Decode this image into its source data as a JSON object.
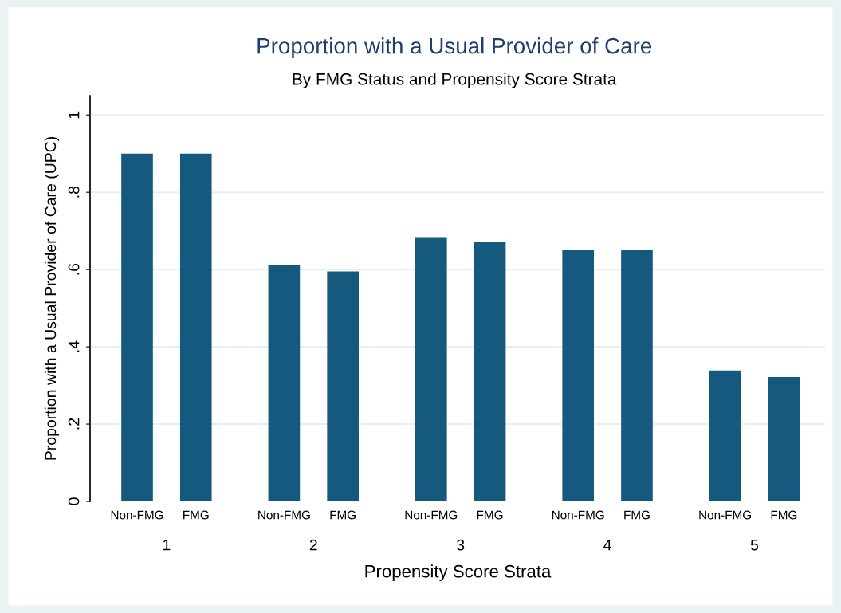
{
  "chart_data": {
    "type": "bar",
    "title": "Proportion with a Usual Provider of Care",
    "subtitle": "By FMG Status and Propensity Score Strata",
    "xlabel": "Propensity Score Strata",
    "ylabel": "Proportion with a Usual Provider of Care (UPC)",
    "categories": [
      "1",
      "2",
      "3",
      "4",
      "5"
    ],
    "series": [
      {
        "name": "Non-FMG",
        "color": "#155a7e",
        "values": [
          0.9,
          0.611,
          0.684,
          0.651,
          0.339
        ]
      },
      {
        "name": "FMG",
        "color": "#155a7e",
        "values": [
          0.9,
          0.595,
          0.672,
          0.651,
          0.322
        ]
      }
    ],
    "ylim": [
      0,
      1.05
    ],
    "yticks": [
      0,
      {
        "value": 0.2,
        "label": ".2"
      },
      {
        "value": 0.4,
        "label": ".4"
      },
      {
        "value": 0.6,
        "label": ".6"
      },
      {
        "value": 0.8,
        "label": ".8"
      },
      1
    ],
    "grid": "y"
  }
}
